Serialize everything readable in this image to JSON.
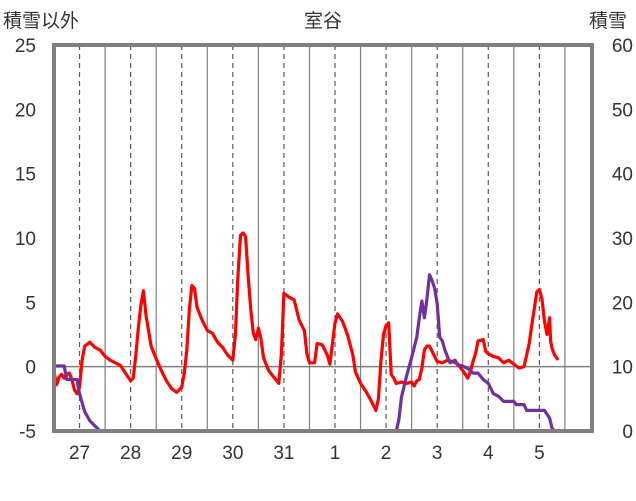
{
  "chart_data": {
    "type": "line",
    "title": "室谷",
    "left_axis_label": "積雪以外",
    "right_axis_label": "積雪",
    "left_ylim": [
      -5,
      25
    ],
    "left_yticks": [
      25,
      20,
      15,
      10,
      5,
      0,
      -5
    ],
    "right_ylim": [
      0,
      60
    ],
    "right_yticks": [
      60,
      50,
      40,
      30,
      20,
      10,
      0
    ],
    "x_day_labels": [
      "27",
      "28",
      "29",
      "30",
      "31",
      "1",
      "2",
      "3",
      "4",
      "5"
    ],
    "x_range_days": [
      -0.5,
      10.03
    ],
    "grid": "dashed at day labels, solid between days",
    "series": [
      {
        "color": "#ff0000",
        "axis": "left",
        "points": [
          [
            -0.5,
            -0.4
          ],
          [
            -0.45,
            -1.4
          ],
          [
            -0.4,
            -0.8
          ],
          [
            -0.35,
            -0.6
          ],
          [
            -0.3,
            -0.9
          ],
          [
            -0.25,
            -0.6
          ],
          [
            -0.2,
            -0.5
          ],
          [
            -0.15,
            -1.0
          ],
          [
            -0.1,
            -1.8
          ],
          [
            -0.05,
            -2.1
          ],
          [
            0.0,
            -1.6
          ],
          [
            0.05,
            0.5
          ],
          [
            0.1,
            1.6
          ],
          [
            0.2,
            1.9
          ],
          [
            0.3,
            1.5
          ],
          [
            0.4,
            1.3
          ],
          [
            0.5,
            0.8
          ],
          [
            0.6,
            0.5
          ],
          [
            0.7,
            0.3
          ],
          [
            0.8,
            0.1
          ],
          [
            0.9,
            -0.5
          ],
          [
            1.0,
            -1.1
          ],
          [
            1.05,
            -0.9
          ],
          [
            1.1,
            0.8
          ],
          [
            1.15,
            3.0
          ],
          [
            1.2,
            4.8
          ],
          [
            1.25,
            5.9
          ],
          [
            1.3,
            4.0
          ],
          [
            1.4,
            1.6
          ],
          [
            1.5,
            0.6
          ],
          [
            1.6,
            -0.3
          ],
          [
            1.7,
            -1.1
          ],
          [
            1.8,
            -1.7
          ],
          [
            1.9,
            -2.0
          ],
          [
            2.0,
            -1.6
          ],
          [
            2.05,
            -0.5
          ],
          [
            2.1,
            1.3
          ],
          [
            2.15,
            4.5
          ],
          [
            2.2,
            6.3
          ],
          [
            2.25,
            6.1
          ],
          [
            2.3,
            4.6
          ],
          [
            2.4,
            3.6
          ],
          [
            2.5,
            2.8
          ],
          [
            2.6,
            2.6
          ],
          [
            2.7,
            1.9
          ],
          [
            2.8,
            1.5
          ],
          [
            2.9,
            0.9
          ],
          [
            3.0,
            0.5
          ],
          [
            3.05,
            2.5
          ],
          [
            3.1,
            7.0
          ],
          [
            3.15,
            10.2
          ],
          [
            3.2,
            10.4
          ],
          [
            3.25,
            10.1
          ],
          [
            3.3,
            7.0
          ],
          [
            3.35,
            4.5
          ],
          [
            3.4,
            2.6
          ],
          [
            3.45,
            2.1
          ],
          [
            3.5,
            3.0
          ],
          [
            3.55,
            2.2
          ],
          [
            3.6,
            0.7
          ],
          [
            3.7,
            -0.3
          ],
          [
            3.8,
            -0.8
          ],
          [
            3.9,
            -1.3
          ],
          [
            3.95,
            1.0
          ],
          [
            4.0,
            5.7
          ],
          [
            4.1,
            5.4
          ],
          [
            4.2,
            5.2
          ],
          [
            4.3,
            3.6
          ],
          [
            4.4,
            2.8
          ],
          [
            4.45,
            1.0
          ],
          [
            4.5,
            0.3
          ],
          [
            4.6,
            0.3
          ],
          [
            4.65,
            1.8
          ],
          [
            4.75,
            1.7
          ],
          [
            4.85,
            0.9
          ],
          [
            4.9,
            0.2
          ],
          [
            5.0,
            3.4
          ],
          [
            5.05,
            4.1
          ],
          [
            5.15,
            3.5
          ],
          [
            5.25,
            2.4
          ],
          [
            5.35,
            0.9
          ],
          [
            5.4,
            -0.4
          ],
          [
            5.5,
            -1.3
          ],
          [
            5.6,
            -1.9
          ],
          [
            5.7,
            -2.6
          ],
          [
            5.8,
            -3.4
          ],
          [
            5.85,
            -2.5
          ],
          [
            5.9,
            0.5
          ],
          [
            5.95,
            2.5
          ],
          [
            6.0,
            3.2
          ],
          [
            6.05,
            3.4
          ],
          [
            6.1,
            -0.6
          ],
          [
            6.15,
            -0.9
          ],
          [
            6.2,
            -1.3
          ],
          [
            6.3,
            -1.2
          ],
          [
            6.4,
            -1.3
          ],
          [
            6.5,
            -1.2
          ],
          [
            6.55,
            -1.5
          ],
          [
            6.6,
            -1.1
          ],
          [
            6.65,
            -1.0
          ],
          [
            6.7,
            -0.1
          ],
          [
            6.75,
            1.3
          ],
          [
            6.8,
            1.6
          ],
          [
            6.85,
            1.6
          ],
          [
            6.9,
            1.2
          ],
          [
            6.95,
            0.8
          ],
          [
            7.0,
            0.4
          ],
          [
            7.1,
            0.3
          ],
          [
            7.2,
            0.5
          ],
          [
            7.3,
            0.4
          ],
          [
            7.4,
            0.2
          ],
          [
            7.5,
            -0.3
          ],
          [
            7.6,
            -0.9
          ],
          [
            7.65,
            -0.4
          ],
          [
            7.7,
            0.4
          ],
          [
            7.75,
            1.0
          ],
          [
            7.8,
            2.0
          ],
          [
            7.9,
            2.1
          ],
          [
            7.95,
            1.2
          ],
          [
            8.0,
            1.0
          ],
          [
            8.1,
            0.8
          ],
          [
            8.2,
            0.7
          ],
          [
            8.3,
            0.3
          ],
          [
            8.4,
            0.5
          ],
          [
            8.5,
            0.2
          ],
          [
            8.6,
            -0.1
          ],
          [
            8.7,
            0.0
          ],
          [
            8.8,
            1.8
          ],
          [
            8.85,
            3.2
          ],
          [
            8.9,
            4.5
          ],
          [
            8.95,
            5.8
          ],
          [
            9.0,
            6.0
          ],
          [
            9.05,
            5.3
          ],
          [
            9.1,
            3.5
          ],
          [
            9.15,
            2.5
          ],
          [
            9.2,
            3.8
          ],
          [
            9.22,
            2.0
          ],
          [
            9.25,
            1.4
          ],
          [
            9.3,
            0.9
          ],
          [
            9.35,
            0.6
          ]
        ]
      },
      {
        "color": "#7030a0",
        "axis": "right",
        "points": [
          [
            -0.5,
            10.1
          ],
          [
            -0.3,
            10.1
          ],
          [
            -0.25,
            8.0
          ],
          [
            -0.05,
            8.0
          ],
          [
            0.0,
            5.8
          ],
          [
            0.1,
            3.0
          ],
          [
            0.2,
            1.6
          ],
          [
            0.3,
            0.8
          ],
          [
            0.4,
            0.0
          ],
          [
            6.2,
            0.0
          ],
          [
            6.25,
            1.8
          ],
          [
            6.3,
            5.2
          ],
          [
            6.4,
            8.5
          ],
          [
            6.5,
            11.4
          ],
          [
            6.6,
            14.6
          ],
          [
            6.65,
            17.6
          ],
          [
            6.7,
            20.2
          ],
          [
            6.75,
            17.6
          ],
          [
            6.8,
            20.6
          ],
          [
            6.85,
            24.3
          ],
          [
            6.9,
            23.4
          ],
          [
            6.95,
            22.2
          ],
          [
            7.0,
            19.8
          ],
          [
            7.05,
            14.6
          ],
          [
            7.1,
            14.0
          ],
          [
            7.15,
            12.6
          ],
          [
            7.2,
            11.6
          ],
          [
            7.25,
            10.6
          ],
          [
            7.3,
            10.8
          ],
          [
            7.35,
            11.0
          ],
          [
            7.4,
            10.3
          ],
          [
            7.5,
            10.1
          ],
          [
            7.6,
            9.7
          ],
          [
            7.7,
            9.0
          ],
          [
            7.8,
            9.0
          ],
          [
            7.9,
            8.0
          ],
          [
            8.0,
            7.4
          ],
          [
            8.1,
            5.8
          ],
          [
            8.2,
            5.4
          ],
          [
            8.3,
            4.6
          ],
          [
            8.5,
            4.6
          ],
          [
            8.55,
            4.1
          ],
          [
            8.7,
            4.1
          ],
          [
            8.75,
            3.2
          ],
          [
            9.1,
            3.2
          ],
          [
            9.2,
            2.0
          ],
          [
            9.25,
            0.4
          ],
          [
            9.3,
            0.0
          ],
          [
            10.03,
            0.0
          ]
        ]
      }
    ]
  }
}
